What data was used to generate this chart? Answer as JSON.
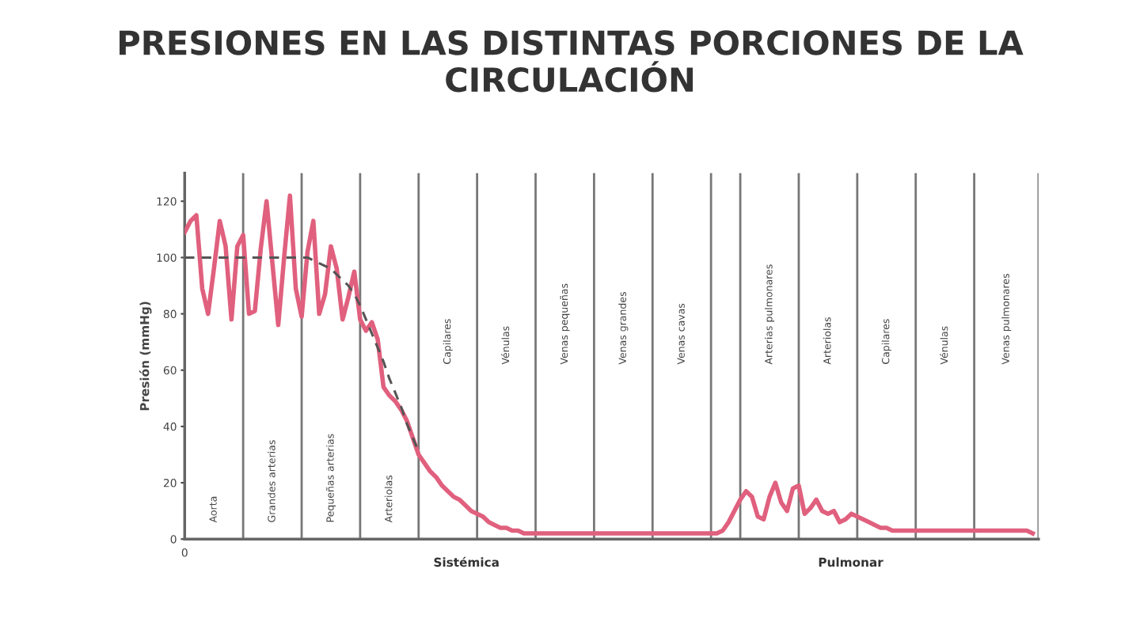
{
  "chart_data": {
    "type": "line",
    "title": "PRESIONES EN LAS DISTINTAS PORCIONES DE LA CIRCULACIÓN",
    "ylabel": "Presión (mmHg)",
    "categories": [
      null,
      null,
      null,
      null,
      null,
      null,
      null,
      null,
      null,
      null,
      null,
      null,
      null,
      null,
      null,
      null,
      null,
      null,
      null,
      null,
      null,
      null,
      null,
      null,
      null,
      null,
      null,
      null,
      null,
      null,
      null,
      null,
      null,
      null,
      null,
      null,
      null,
      null,
      null,
      null,
      null,
      null,
      null,
      null,
      null,
      null,
      null,
      null,
      null,
      null,
      null,
      null,
      null,
      null,
      null,
      null,
      null,
      null,
      null,
      null,
      null,
      null,
      null,
      null,
      null,
      null,
      null,
      null,
      null,
      null,
      null,
      null,
      null,
      null,
      null,
      null,
      null,
      null,
      null,
      null,
      null,
      null,
      null,
      null,
      null,
      null,
      null,
      null,
      null,
      null,
      null,
      null,
      null,
      null,
      null,
      null,
      null,
      null,
      null,
      null,
      null,
      null,
      null,
      null,
      null,
      null,
      null,
      null,
      null,
      null,
      null,
      null,
      null,
      null,
      null,
      null,
      null,
      null,
      null,
      null,
      null,
      null,
      null,
      null,
      null,
      null,
      null,
      null,
      null,
      null,
      null,
      null,
      null,
      null,
      null,
      null,
      null,
      null,
      null,
      null,
      null,
      null,
      null,
      null,
      null,
      null
    ],
    "ylim": [
      0,
      130
    ],
    "yticks": [
      0,
      20,
      40,
      60,
      80,
      100,
      120
    ],
    "grid": false,
    "series": [
      {
        "color": "#e0607e",
        "line_style": "solid",
        "values": [
          109,
          113,
          115,
          89,
          80,
          96,
          113,
          104,
          78,
          104,
          108,
          80,
          81,
          103,
          120,
          98,
          76,
          100,
          122,
          89,
          79,
          102,
          113,
          80,
          87,
          104,
          96,
          78,
          86,
          95,
          78,
          74,
          77,
          71,
          54,
          51,
          49,
          46,
          42,
          36,
          30,
          27,
          24,
          22,
          19,
          17,
          15,
          14,
          12,
          10,
          9,
          8,
          6,
          5,
          4,
          4,
          3,
          3,
          2,
          2,
          2,
          2,
          2,
          2,
          2,
          2,
          2,
          2,
          2,
          2,
          2,
          2,
          2,
          2,
          2,
          2,
          2,
          2,
          2,
          2,
          2,
          2,
          2,
          2,
          2,
          2,
          2,
          2,
          2,
          2,
          2,
          2,
          3,
          6,
          10,
          14,
          17,
          15,
          8,
          7,
          15,
          20,
          13,
          10,
          18,
          19,
          9,
          11,
          14,
          10,
          9,
          10,
          6,
          7,
          9,
          8,
          7,
          6,
          5,
          4,
          4,
          3,
          3,
          3,
          3,
          3,
          3,
          3,
          3,
          3,
          3,
          3,
          3,
          3,
          3,
          3,
          3,
          3,
          3,
          3,
          3,
          3,
          3,
          3,
          3,
          2
        ]
      },
      {
        "color": "#555555",
        "line_style": "dashed",
        "values": [
          100,
          100,
          100,
          100,
          100,
          100,
          100,
          100,
          100,
          100,
          100,
          100,
          100,
          100,
          100,
          100,
          100,
          100,
          100,
          100,
          100,
          100,
          99,
          98,
          97,
          96,
          94,
          92,
          90,
          87,
          83,
          78,
          73,
          68,
          63,
          57,
          52,
          47,
          41,
          36,
          31,
          null,
          null,
          null,
          null,
          null,
          null,
          null,
          null,
          null,
          null,
          null,
          null,
          null,
          null,
          null,
          null,
          null,
          null,
          null,
          null,
          null,
          null,
          null,
          null,
          null,
          null,
          null,
          null,
          null,
          null,
          null,
          null,
          null,
          null,
          null,
          null,
          null,
          null,
          null,
          null,
          null,
          null,
          null,
          null,
          null,
          null,
          null,
          null,
          null,
          null,
          null,
          null,
          null,
          null,
          null,
          null,
          null,
          null,
          null,
          null,
          null,
          null,
          null,
          null,
          null,
          null,
          null,
          null,
          null,
          null,
          null,
          null,
          null,
          null,
          null,
          null,
          null,
          null,
          null,
          null,
          null,
          null,
          null,
          null,
          null,
          null,
          null,
          null,
          null,
          null,
          null,
          null,
          null,
          null,
          null,
          null,
          null,
          null,
          null,
          null,
          null,
          null,
          null,
          null,
          null
        ]
      }
    ],
    "annotations": [
      "0",
      "Sistémica",
      "Pulmonar",
      "Aorta",
      "Grandes arterias",
      "Pequeñas arterias",
      "Arteriolas",
      "Capilares",
      "Vénulas",
      "Venas pequeñas",
      "Venas grandes",
      "Venas cavas",
      "Arterias pulmonares",
      "Arteriolas",
      "Capilares",
      "Vénulas",
      "Venas pulmonares"
    ]
  }
}
